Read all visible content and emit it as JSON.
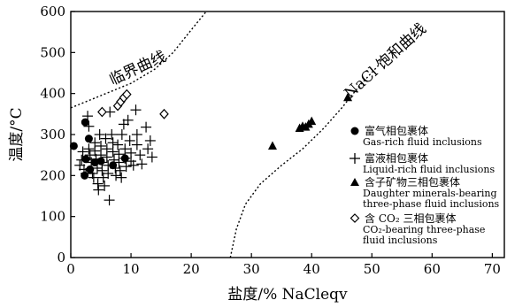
{
  "chart_data": {
    "type": "scatter",
    "xlabel": "盐度/% NaCleqv",
    "ylabel": "温度/°C",
    "xlim": [
      0,
      72
    ],
    "ylim": [
      0,
      600
    ],
    "xticks": [
      0,
      10,
      20,
      30,
      40,
      50,
      60,
      70
    ],
    "yticks": [
      0,
      100,
      200,
      300,
      400,
      500,
      600
    ],
    "grid": false,
    "legend_position": "right",
    "curves": [
      {
        "label": "临界曲线",
        "style": "dotted",
        "points": [
          [
            0,
            365
          ],
          [
            5,
            395
          ],
          [
            10,
            425
          ],
          [
            14,
            460
          ],
          [
            17,
            500
          ],
          [
            20,
            555
          ],
          [
            22.5,
            600
          ]
        ]
      },
      {
        "label": "NaCl 饱和曲线",
        "style": "dotted",
        "points": [
          [
            26.5,
            0
          ],
          [
            27.5,
            70
          ],
          [
            29,
            130
          ],
          [
            31.5,
            180
          ],
          [
            35,
            225
          ],
          [
            38.5,
            265
          ],
          [
            42,
            315
          ],
          [
            45,
            365
          ],
          [
            48,
            420
          ],
          [
            51.5,
            475
          ]
        ]
      }
    ],
    "series": [
      {
        "name_cn": "富气相包裹体",
        "name_en": "Gas-rich fluid inclusions",
        "marker": "circle",
        "points": [
          [
            0.5,
            272
          ],
          [
            2.3,
            200
          ],
          [
            2.5,
            240
          ],
          [
            2.4,
            330
          ],
          [
            3,
            290
          ],
          [
            3.2,
            215
          ],
          [
            4,
            232
          ],
          [
            5,
            235
          ],
          [
            7,
            225
          ],
          [
            9,
            242
          ]
        ]
      },
      {
        "name_cn": "富液相包裹体",
        "name_en": "Liquid-rich fluid inclusions",
        "marker": "plus",
        "points": [
          [
            1.5,
            225
          ],
          [
            1.8,
            238
          ],
          [
            2,
            258
          ],
          [
            2.2,
            215
          ],
          [
            2.5,
            205
          ],
          [
            2.8,
            345
          ],
          [
            3,
            320
          ],
          [
            3,
            265
          ],
          [
            3.2,
            250
          ],
          [
            3.4,
            232
          ],
          [
            3.6,
            205
          ],
          [
            3.8,
            195
          ],
          [
            4,
            280
          ],
          [
            4,
            260
          ],
          [
            4.2,
            240
          ],
          [
            4.4,
            218
          ],
          [
            4.5,
            180
          ],
          [
            4.6,
            165
          ],
          [
            4.8,
            300
          ],
          [
            5,
            272
          ],
          [
            5,
            250
          ],
          [
            5.2,
            232
          ],
          [
            5.2,
            212
          ],
          [
            5.4,
            195
          ],
          [
            5.6,
            175
          ],
          [
            5.8,
            290
          ],
          [
            6,
            265
          ],
          [
            6,
            245
          ],
          [
            6.2,
            225
          ],
          [
            6.2,
            205
          ],
          [
            6.4,
            140
          ],
          [
            6.5,
            355
          ],
          [
            6.8,
            300
          ],
          [
            7,
            280
          ],
          [
            7,
            258
          ],
          [
            7.2,
            238
          ],
          [
            7.4,
            218
          ],
          [
            7.5,
            200
          ],
          [
            7.8,
            275
          ],
          [
            8,
            252
          ],
          [
            8,
            232
          ],
          [
            8.2,
            212
          ],
          [
            8.4,
            195
          ],
          [
            8.5,
            300
          ],
          [
            8.8,
            325
          ],
          [
            9,
            265
          ],
          [
            9,
            242
          ],
          [
            9.2,
            222
          ],
          [
            9.5,
            335
          ],
          [
            9.8,
            285
          ],
          [
            10,
            255
          ],
          [
            10,
            235
          ],
          [
            10.4,
            225
          ],
          [
            10.8,
            360
          ],
          [
            11,
            300
          ],
          [
            11,
            275
          ],
          [
            11.5,
            250
          ],
          [
            11.8,
            228
          ],
          [
            12.5,
            318
          ],
          [
            12.8,
            265
          ],
          [
            13.2,
            285
          ],
          [
            13.5,
            245
          ]
        ]
      },
      {
        "name_cn": "含子矿物三相包裹体",
        "name_en": "Daughter minerals-bearing three-phase fluid inclusions",
        "marker": "triangle",
        "points": [
          [
            33.5,
            272
          ],
          [
            38,
            315
          ],
          [
            38.5,
            320
          ],
          [
            39,
            318
          ],
          [
            39.5,
            325
          ],
          [
            40,
            332
          ],
          [
            46,
            390
          ]
        ]
      },
      {
        "name_cn": "含 CO₂ 三相包裹体",
        "name_en": "CO₂-bearing three-phase fluid inclusions",
        "marker": "diamond",
        "points": [
          [
            5.2,
            355
          ],
          [
            7.8,
            370
          ],
          [
            8.3,
            380
          ],
          [
            8.8,
            390
          ],
          [
            9.3,
            398
          ],
          [
            15.5,
            350
          ]
        ]
      }
    ]
  },
  "legend": {
    "items": [
      {
        "cn": "富气相包裹体",
        "en": [
          "Gas-rich fluid inclusions"
        ]
      },
      {
        "cn": "富液相包裹体",
        "en": [
          "Liquid-rich fluid inclusions"
        ]
      },
      {
        "cn": "含子矿物三相包裹体",
        "en": [
          "Daughter minerals-bearing",
          "three-phase fluid inclusions"
        ]
      },
      {
        "cn": "含 CO₂ 三相包裹体",
        "en": [
          "CO₂-bearing three-phase",
          "fluid inclusions"
        ]
      }
    ]
  }
}
